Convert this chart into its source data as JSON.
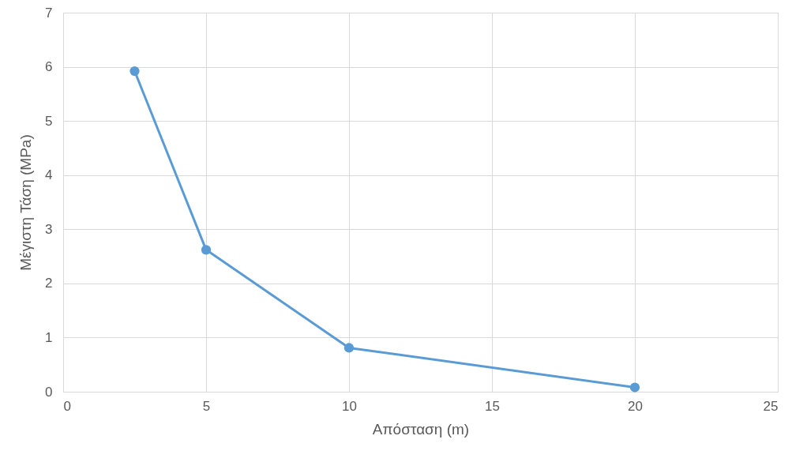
{
  "chart_data": {
    "type": "line",
    "xlabel": "Απόσταση (m)",
    "ylabel": "Μέγιστη Τάση (MPa)",
    "x": [
      2.5,
      5,
      10,
      20
    ],
    "series": [
      {
        "color": "#5b9bd5",
        "values": [
          5.92,
          2.62,
          0.81,
          0.08
        ]
      }
    ],
    "xlim": [
      0,
      25
    ],
    "xticks": [
      0,
      5,
      10,
      15,
      20,
      25
    ],
    "ylim": [
      0,
      7
    ],
    "yticks": [
      0,
      1,
      2,
      3,
      4,
      5,
      6,
      7
    ],
    "grid": true,
    "marker": "circle",
    "line_style": "solid"
  }
}
